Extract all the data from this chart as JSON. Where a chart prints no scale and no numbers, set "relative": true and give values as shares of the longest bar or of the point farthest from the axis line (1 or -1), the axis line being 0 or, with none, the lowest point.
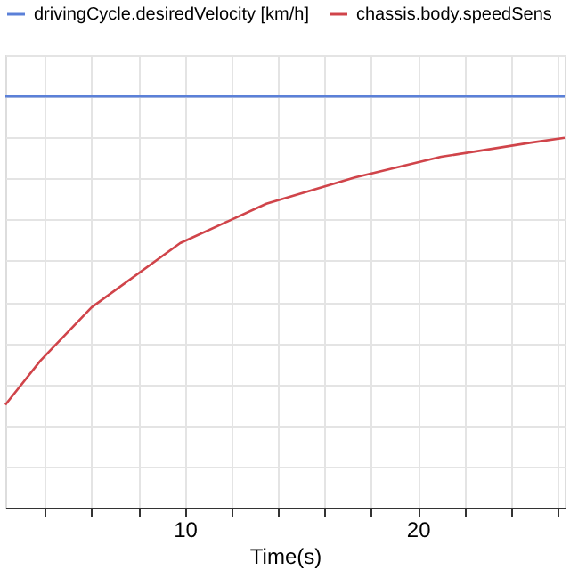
{
  "chart_data": {
    "type": "line",
    "xlabel": "Time(s)",
    "relative": true,
    "xlim": [
      2.3,
      26.3
    ],
    "xticks": [
      {
        "value": 4,
        "label": null
      },
      {
        "value": 6,
        "label": null
      },
      {
        "value": 8,
        "label": null
      },
      10,
      {
        "value": 12,
        "label": null
      },
      {
        "value": 14,
        "label": null
      },
      {
        "value": 16,
        "label": null
      },
      {
        "value": 18,
        "label": null
      },
      20,
      {
        "value": 22,
        "label": null
      },
      {
        "value": 24,
        "label": null
      },
      {
        "value": 26,
        "label": null
      }
    ],
    "series": [
      {
        "name": "drivingCycle.desiredVelocity [km/h]",
        "color": "#5b80d8",
        "x": [
          2.3,
          26.3
        ],
        "values": [
          1,
          1
        ]
      },
      {
        "name": "chassis.body.speedSens",
        "color": "#d0444a",
        "x": [
          2.3,
          3.8,
          6.0,
          9.8,
          13.5,
          17.3,
          21.0,
          24.8,
          26.3
        ],
        "values": [
          0.25,
          0.357,
          0.487,
          0.643,
          0.739,
          0.803,
          0.853,
          0.887,
          0.899
        ]
      }
    ],
    "grid": true,
    "legend": "top",
    "tick_labels": "x",
    "line_style": "solid",
    "marker": "none"
  }
}
